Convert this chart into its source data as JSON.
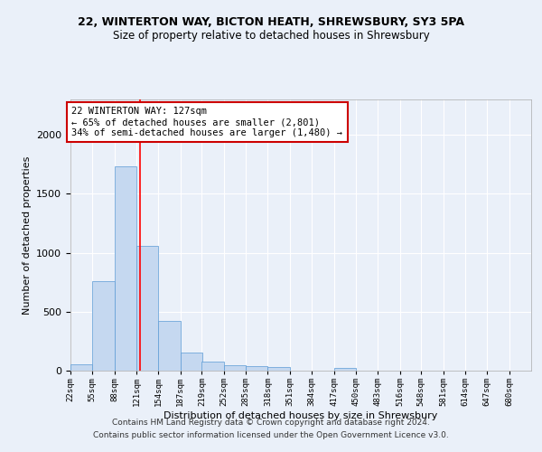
{
  "title1": "22, WINTERTON WAY, BICTON HEATH, SHREWSBURY, SY3 5PA",
  "title2": "Size of property relative to detached houses in Shrewsbury",
  "xlabel": "Distribution of detached houses by size in Shrewsbury",
  "ylabel": "Number of detached properties",
  "footer1": "Contains HM Land Registry data © Crown copyright and database right 2024.",
  "footer2": "Contains public sector information licensed under the Open Government Licence v3.0.",
  "annotation_line1": "22 WINTERTON WAY: 127sqm",
  "annotation_line2": "← 65% of detached houses are smaller (2,801)",
  "annotation_line3": "34% of semi-detached houses are larger (1,480) →",
  "bar_color": "#c5d8f0",
  "bar_edge_color": "#5b9bd5",
  "red_line_x": 127,
  "categories": [
    "22sqm",
    "55sqm",
    "88sqm",
    "121sqm",
    "154sqm",
    "187sqm",
    "219sqm",
    "252sqm",
    "285sqm",
    "318sqm",
    "351sqm",
    "384sqm",
    "417sqm",
    "450sqm",
    "483sqm",
    "516sqm",
    "548sqm",
    "581sqm",
    "614sqm",
    "647sqm",
    "680sqm"
  ],
  "bin_edges": [
    22,
    55,
    88,
    121,
    154,
    187,
    219,
    252,
    285,
    318,
    351,
    384,
    417,
    450,
    483,
    516,
    548,
    581,
    614,
    647,
    680
  ],
  "bin_width": 33,
  "values": [
    55,
    760,
    1730,
    1060,
    420,
    150,
    80,
    45,
    40,
    30,
    0,
    0,
    20,
    0,
    0,
    0,
    0,
    0,
    0,
    0,
    0
  ],
  "ylim": [
    0,
    2300
  ],
  "background_color": "#eaf0f9",
  "grid_color": "#ffffff",
  "annotation_box_color": "#ffffff",
  "annotation_box_edgecolor": "#cc0000"
}
